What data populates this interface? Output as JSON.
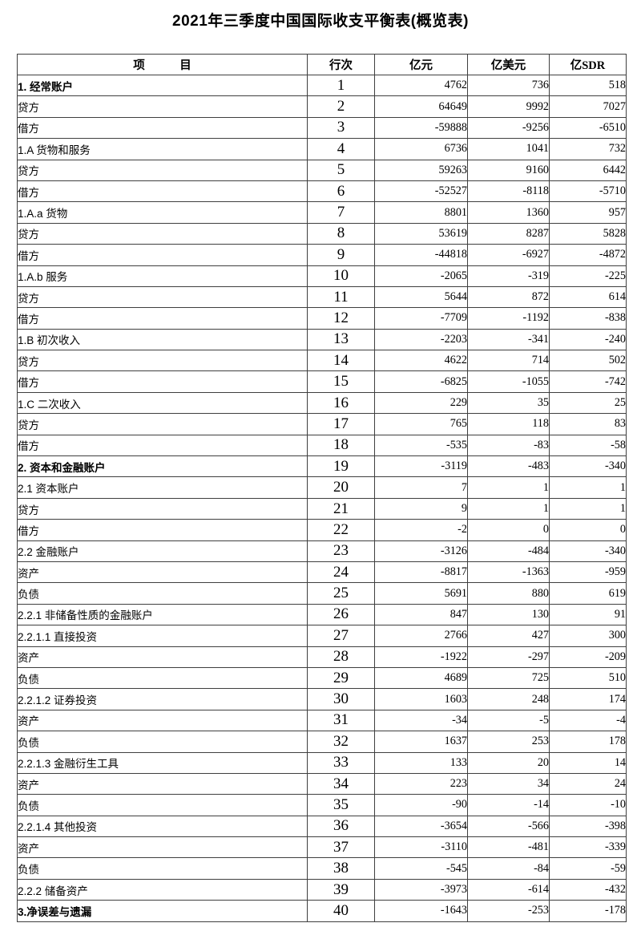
{
  "title": "2021年三季度中国国际收支平衡表(概览表)",
  "colors": {
    "background": "#ffffff",
    "text": "#000000",
    "border": "#3f3f3f"
  },
  "table": {
    "headers": {
      "item": "项　　　目",
      "line": "行次",
      "cny": "亿元",
      "usd": "亿美元",
      "sdr": "亿SDR"
    },
    "rows": [
      {
        "item": "1. 经常账户",
        "line": "1",
        "cny": "4762",
        "usd": "736",
        "sdr": "518",
        "indent": 0,
        "bold": true
      },
      {
        "item": "贷方",
        "line": "2",
        "cny": "64649",
        "usd": "9992",
        "sdr": "7027",
        "indent": 0,
        "bold": false
      },
      {
        "item": "借方",
        "line": "3",
        "cny": "-59888",
        "usd": "-9256",
        "sdr": "-6510",
        "indent": 0,
        "bold": false
      },
      {
        "item": "1.A 货物和服务",
        "line": "4",
        "cny": "6736",
        "usd": "1041",
        "sdr": "732",
        "indent": 1,
        "bold": false
      },
      {
        "item": "贷方",
        "line": "5",
        "cny": "59263",
        "usd": "9160",
        "sdr": "6442",
        "indent": 2,
        "bold": false
      },
      {
        "item": "借方",
        "line": "6",
        "cny": "-52527",
        "usd": "-8118",
        "sdr": "-5710",
        "indent": 2,
        "bold": false
      },
      {
        "item": "1.A.a 货物",
        "line": "7",
        "cny": "8801",
        "usd": "1360",
        "sdr": "957",
        "indent": 2,
        "bold": false
      },
      {
        "item": "贷方",
        "line": "8",
        "cny": "53619",
        "usd": "8287",
        "sdr": "5828",
        "indent": 3,
        "bold": false
      },
      {
        "item": "借方",
        "line": "9",
        "cny": "-44818",
        "usd": "-6927",
        "sdr": "-4872",
        "indent": 3,
        "bold": false
      },
      {
        "item": "1.A.b 服务",
        "line": "10",
        "cny": "-2065",
        "usd": "-319",
        "sdr": "-225",
        "indent": 2,
        "bold": false
      },
      {
        "item": "贷方",
        "line": "11",
        "cny": "5644",
        "usd": "872",
        "sdr": "614",
        "indent": 3,
        "bold": false
      },
      {
        "item": "借方",
        "line": "12",
        "cny": "-7709",
        "usd": "-1192",
        "sdr": "-838",
        "indent": 3,
        "bold": false
      },
      {
        "item": "1.B 初次收入",
        "line": "13",
        "cny": "-2203",
        "usd": "-341",
        "sdr": "-240",
        "indent": 1,
        "bold": false
      },
      {
        "item": "贷方",
        "line": "14",
        "cny": "4622",
        "usd": "714",
        "sdr": "502",
        "indent": 2,
        "bold": false
      },
      {
        "item": "借方",
        "line": "15",
        "cny": "-6825",
        "usd": "-1055",
        "sdr": "-742",
        "indent": 2,
        "bold": false
      },
      {
        "item": "1.C 二次收入",
        "line": "16",
        "cny": "229",
        "usd": "35",
        "sdr": "25",
        "indent": 1,
        "bold": false
      },
      {
        "item": "贷方",
        "line": "17",
        "cny": "765",
        "usd": "118",
        "sdr": "83",
        "indent": 2,
        "bold": false
      },
      {
        "item": "借方",
        "line": "18",
        "cny": "-535",
        "usd": "-83",
        "sdr": "-58",
        "indent": 2,
        "bold": false
      },
      {
        "item": "2. 资本和金融账户",
        "line": "19",
        "cny": "-3119",
        "usd": "-483",
        "sdr": "-340",
        "indent": 0,
        "bold": true
      },
      {
        "item": "2.1 资本账户",
        "line": "20",
        "cny": "7",
        "usd": "1",
        "sdr": "1",
        "indent": 1,
        "bold": false
      },
      {
        "item": "贷方",
        "line": "21",
        "cny": "9",
        "usd": "1",
        "sdr": "1",
        "indent": 2,
        "bold": false
      },
      {
        "item": "借方",
        "line": "22",
        "cny": "-2",
        "usd": "0",
        "sdr": "0",
        "indent": 2,
        "bold": false
      },
      {
        "item": "2.2 金融账户",
        "line": "23",
        "cny": "-3126",
        "usd": "-484",
        "sdr": "-340",
        "indent": 1,
        "bold": false
      },
      {
        "item": "资产",
        "line": "24",
        "cny": "-8817",
        "usd": "-1363",
        "sdr": "-959",
        "indent": 2,
        "bold": false
      },
      {
        "item": "负债",
        "line": "25",
        "cny": "5691",
        "usd": "880",
        "sdr": "619",
        "indent": 2,
        "bold": false
      },
      {
        "item": "2.2.1 非储备性质的金融账户",
        "line": "26",
        "cny": "847",
        "usd": "130",
        "sdr": "91",
        "indent": 2,
        "bold": false
      },
      {
        "item": "2.2.1.1 直接投资",
        "line": "27",
        "cny": "2766",
        "usd": "427",
        "sdr": "300",
        "indent": 4,
        "bold": false
      },
      {
        "item": "资产",
        "line": "28",
        "cny": "-1922",
        "usd": "-297",
        "sdr": "-209",
        "indent": 5,
        "bold": false
      },
      {
        "item": "负债",
        "line": "29",
        "cny": "4689",
        "usd": "725",
        "sdr": "510",
        "indent": 5,
        "bold": false
      },
      {
        "item": "2.2.1.2 证券投资",
        "line": "30",
        "cny": "1603",
        "usd": "248",
        "sdr": "174",
        "indent": 4,
        "bold": false
      },
      {
        "item": "资产",
        "line": "31",
        "cny": "-34",
        "usd": "-5",
        "sdr": "-4",
        "indent": 5,
        "bold": false
      },
      {
        "item": "负债",
        "line": "32",
        "cny": "1637",
        "usd": "253",
        "sdr": "178",
        "indent": 5,
        "bold": false
      },
      {
        "item": "2.2.1.3 金融衍生工具",
        "line": "33",
        "cny": "133",
        "usd": "20",
        "sdr": "14",
        "indent": 4,
        "bold": false
      },
      {
        "item": "资产",
        "line": "34",
        "cny": "223",
        "usd": "34",
        "sdr": "24",
        "indent": 5,
        "bold": false
      },
      {
        "item": "负债",
        "line": "35",
        "cny": "-90",
        "usd": "-14",
        "sdr": "-10",
        "indent": 5,
        "bold": false
      },
      {
        "item": "2.2.1.4 其他投资",
        "line": "36",
        "cny": "-3654",
        "usd": "-566",
        "sdr": "-398",
        "indent": 4,
        "bold": false
      },
      {
        "item": "资产",
        "line": "37",
        "cny": "-3110",
        "usd": "-481",
        "sdr": "-339",
        "indent": 5,
        "bold": false
      },
      {
        "item": "负债",
        "line": "38",
        "cny": "-545",
        "usd": "-84",
        "sdr": "-59",
        "indent": 5,
        "bold": false
      },
      {
        "item": "2.2.2 储备资产",
        "line": "39",
        "cny": "-3973",
        "usd": "-614",
        "sdr": "-432",
        "indent": 2,
        "bold": false
      },
      {
        "item": "3.净误差与遗漏",
        "line": "40",
        "cny": "-1643",
        "usd": "-253",
        "sdr": "-178",
        "indent": 0,
        "bold": true,
        "sdr_divider_hidden": true
      }
    ]
  }
}
